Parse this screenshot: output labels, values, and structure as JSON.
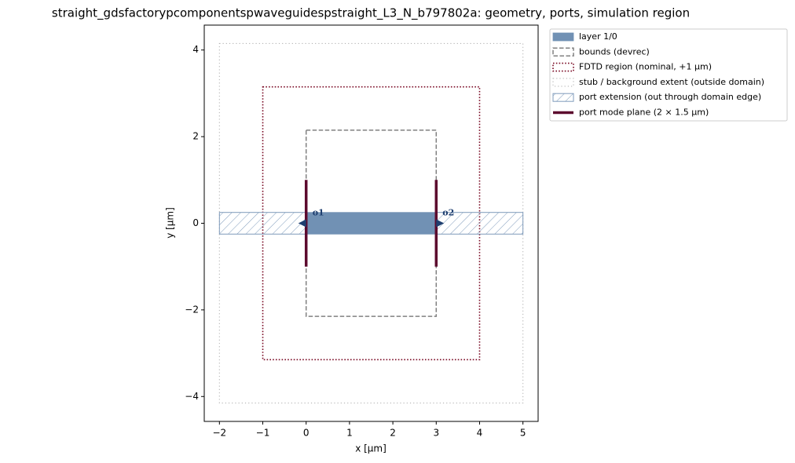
{
  "chart_data": {
    "type": "geometry",
    "title": "straight_gdsfactorypcomponentspwaveguidespstraight_L3_N_b797802a: geometry, ports, simulation region",
    "xlabel": "x [µm]",
    "ylabel": "y [µm]",
    "xlim": [
      -2.35,
      5.35
    ],
    "ylim": [
      -4.575,
      4.575
    ],
    "xticks": [
      {
        "value": -2,
        "label": "−2"
      },
      {
        "value": -1,
        "label": "−1"
      },
      0,
      1,
      2,
      3,
      4,
      5
    ],
    "yticks": [
      {
        "value": -4,
        "label": "−4"
      },
      {
        "value": -2,
        "label": "−2"
      },
      0,
      2,
      4
    ],
    "series": [
      {
        "name": "layer 1/0",
        "color": "#7191b4",
        "style": "fill",
        "rects": [
          {
            "x": [
              0,
              3
            ],
            "y": [
              -0.25,
              0.25
            ]
          }
        ]
      },
      {
        "name": "bounds (devrec)",
        "color": "#808080",
        "style": "dashed",
        "rects": [
          {
            "x": [
              0,
              3
            ],
            "y": [
              -2.15,
              2.15
            ]
          }
        ]
      },
      {
        "name": "FDTD region (nominal, +1 µm)",
        "color": "#7a0a24",
        "style": "dotted",
        "rects": [
          {
            "x": [
              -1,
              4
            ],
            "y": [
              -3.15,
              3.15
            ]
          }
        ]
      },
      {
        "name": "stub / background extent (outside domain)",
        "color": "#b4b4b4",
        "style": "dotted-thin",
        "rects": [
          {
            "x": [
              -2,
              5
            ],
            "y": [
              -4.15,
              4.15
            ]
          }
        ]
      },
      {
        "name": "port extension (out through domain edge)",
        "color": "#7f9bbb",
        "style": "hatch",
        "rects": [
          {
            "x": [
              -2,
              0
            ],
            "y": [
              -0.25,
              0.25
            ]
          },
          {
            "x": [
              3,
              5
            ],
            "y": [
              -0.25,
              0.25
            ]
          }
        ]
      },
      {
        "name": "port mode plane (2 × 1.5 µm)",
        "color": "#5c0a2e",
        "style": "line",
        "rects": [
          {
            "x": [
              0,
              0
            ],
            "y": [
              -1,
              1
            ]
          },
          {
            "x": [
              3,
              3
            ],
            "y": [
              -1,
              1
            ]
          }
        ]
      }
    ],
    "ports": [
      {
        "name": "o1",
        "x": 0,
        "y": 0,
        "direction": "left",
        "color": "#1f3f70"
      },
      {
        "name": "o2",
        "x": 3,
        "y": 0,
        "direction": "right",
        "color": "#1f3f70"
      }
    ]
  }
}
